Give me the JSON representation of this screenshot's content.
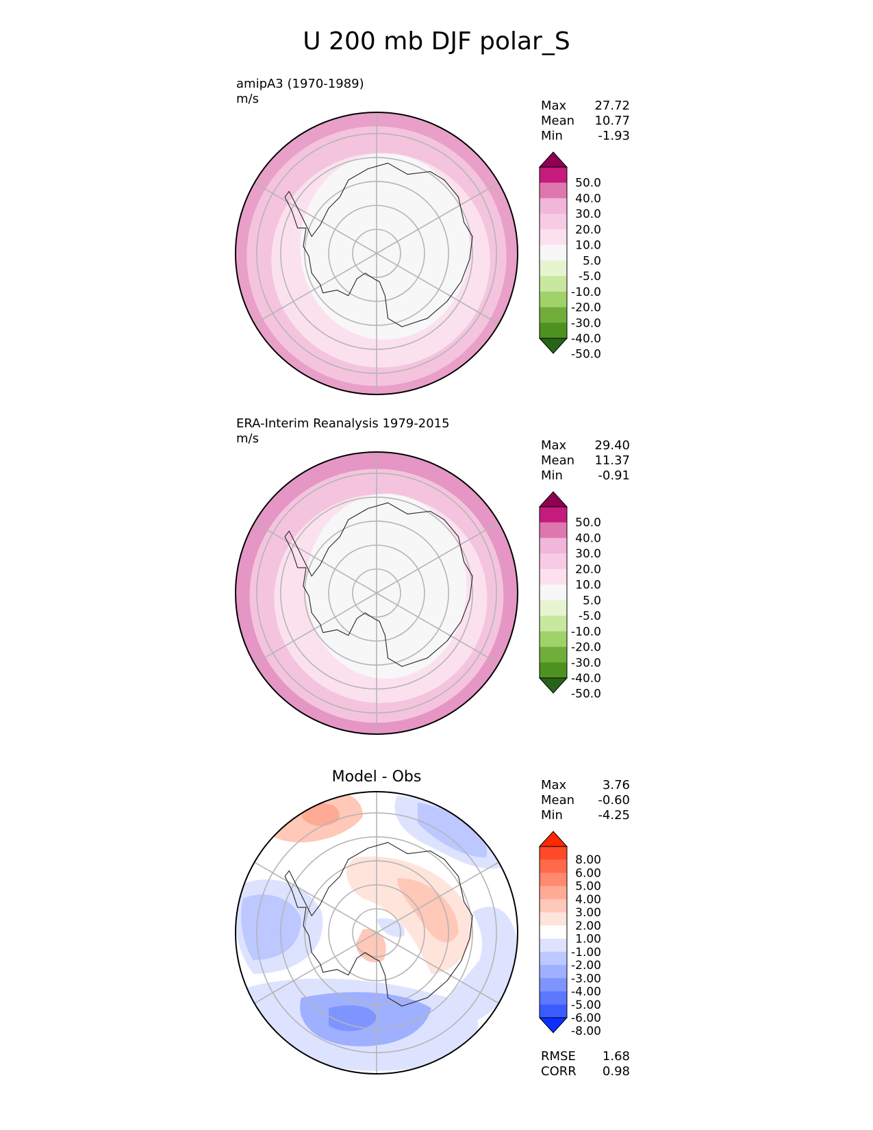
{
  "figure_title": "U 200 mb DJF polar_S",
  "chart_data": [
    {
      "type": "polar-contour",
      "panel": "test",
      "title_line1": "amipA3 (1970-1989)",
      "units": "m/s",
      "stats": {
        "max_label": "Max",
        "max": "27.72",
        "mean_label": "Mean",
        "mean": "10.77",
        "min_label": "Min",
        "min": "-1.93"
      },
      "levels": [
        "50.0",
        "40.0",
        "30.0",
        "20.0",
        "10.0",
        "5.0",
        "-5.0",
        "-10.0",
        "-20.0",
        "-30.0",
        "-40.0",
        "-50.0"
      ],
      "colors": [
        "#8e0152",
        "#c51b7d",
        "#de77ae",
        "#f1b6da",
        "#f7cbe4",
        "#fde0ef",
        "#f7f7f7",
        "#e6f5d0",
        "#c8e8a0",
        "#a0d26a",
        "#70ad3a",
        "#4d9221",
        "#276419"
      ],
      "rings": [
        {
          "r": 1.0,
          "color": "#e8a0c8"
        },
        {
          "r": 0.92,
          "color": "#f4c4de"
        },
        {
          "r": 0.76,
          "color": "#fbe1ee"
        },
        {
          "r": 0.6,
          "color": "#f7f7f7"
        }
      ]
    },
    {
      "type": "polar-contour",
      "panel": "reference",
      "title_line1": "ERA-Interim Reanalysis 1979-2015",
      "units": "m/s",
      "stats": {
        "max_label": "Max",
        "max": "29.40",
        "mean_label": "Mean",
        "mean": "11.37",
        "min_label": "Min",
        "min": "-0.91"
      },
      "levels": [
        "50.0",
        "40.0",
        "30.0",
        "20.0",
        "10.0",
        "5.0",
        "-5.0",
        "-10.0",
        "-20.0",
        "-30.0",
        "-40.0",
        "-50.0"
      ],
      "colors": [
        "#8e0152",
        "#c51b7d",
        "#de77ae",
        "#f1b6da",
        "#f7cbe4",
        "#fde0ef",
        "#f7f7f7",
        "#e6f5d0",
        "#c8e8a0",
        "#a0d26a",
        "#70ad3a",
        "#4d9221",
        "#276419"
      ],
      "rings": [
        {
          "r": 1.0,
          "color": "#e596c4"
        },
        {
          "r": 0.9,
          "color": "#f4c4de"
        },
        {
          "r": 0.74,
          "color": "#fbe1ee"
        },
        {
          "r": 0.57,
          "color": "#f7f7f7"
        }
      ]
    },
    {
      "type": "polar-contour",
      "panel": "difference",
      "title_center": "Model - Obs",
      "stats": {
        "max_label": "Max",
        "max": "3.76",
        "mean_label": "Mean",
        "mean": "-0.60",
        "min_label": "Min",
        "min": "-4.25"
      },
      "levels": [
        "8.00",
        "6.00",
        "5.00",
        "4.00",
        "3.00",
        "2.00",
        "1.00",
        "-1.00",
        "-2.00",
        "-3.00",
        "-4.00",
        "-5.00",
        "-6.00",
        "-8.00"
      ],
      "colors": [
        "#ff2a00",
        "#ff4a2a",
        "#ff6a4a",
        "#ff8a6e",
        "#ffaa94",
        "#ffc8b8",
        "#ffe4dc",
        "#ffffff",
        "#dde3ff",
        "#bcc8ff",
        "#9eb0ff",
        "#7e94ff",
        "#5c78ff",
        "#3a5cff",
        "#0a30ff"
      ],
      "metrics": {
        "rmse_label": "RMSE",
        "rmse": "1.68",
        "corr_label": "CORR",
        "corr": "0.98"
      }
    }
  ]
}
